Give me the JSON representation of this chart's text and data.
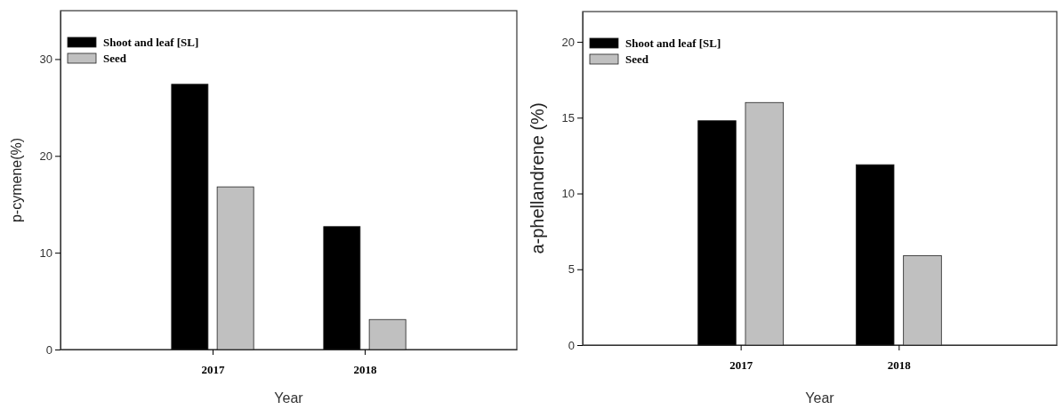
{
  "chart_data": [
    {
      "type": "bar",
      "xlabel": "Year",
      "ylabel": "p-cymene(%)",
      "categories": [
        "2017",
        "2018"
      ],
      "series": [
        {
          "name": "Shoot and leaf [SL]",
          "color": "#000000",
          "values": [
            27.4,
            12.7
          ]
        },
        {
          "name": "Seed",
          "color": "#c0c0c0",
          "values": [
            16.8,
            3.1
          ]
        }
      ],
      "ylim": [
        0,
        35
      ],
      "yticks": [
        0,
        10,
        20,
        30
      ],
      "legend": "top left"
    },
    {
      "type": "bar",
      "xlabel": "Year",
      "ylabel": "a-phellandrene (%)",
      "categories": [
        "2017",
        "2018"
      ],
      "series": [
        {
          "name": "Shoot and leaf [SL]",
          "color": "#000000",
          "values": [
            14.8,
            11.9
          ]
        },
        {
          "name": "Seed",
          "color": "#c0c0c0",
          "values": [
            16.0,
            5.9
          ]
        }
      ],
      "ylim": [
        0,
        22
      ],
      "yticks": [
        0,
        5,
        10,
        15,
        20
      ],
      "legend": "top left"
    }
  ]
}
